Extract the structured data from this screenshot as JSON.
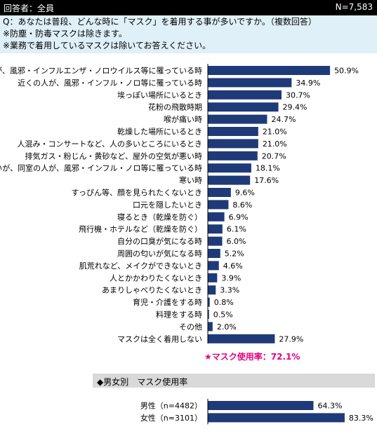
{
  "header": {
    "respondents": "回答者：全員",
    "n": "N=7,583"
  },
  "question": {
    "line1": "Q：あなたは普段、どんな時に「マスク」を着用する事が多いですか。（複数回答）",
    "line2": "※防塵・防毒マスクは除きます。",
    "line3": "※業務で着用しているマスクは除いてお答えください。"
  },
  "colors": {
    "bar": "#1f3a78",
    "note": "#e6007e",
    "question_bg": "#dff0f9",
    "section_bg": "#d9d9d9"
  },
  "chart_data": [
    {
      "type": "bar",
      "orientation": "horizontal",
      "unit": "%",
      "categories": [
        "自分が、風邪・インフルエンザ・ノロウイルス等に罹っている時",
        "近くの人が、風邪・インフル・ノロ等に罹っている時",
        "埃っぽい場所にいるとき",
        "花粉の飛散時期",
        "喉が痛い時",
        "乾燥した場所にいるとき",
        "人混み・コンサートなど、人の多いところにいるとき",
        "排気ガス・粉じん・黄砂など、屋外の空気が悪い時",
        "近くはないが、同室の人が、風邪・インフル・ノロ等に罹っている時",
        "寒い時",
        "すっぴん等、顔を見られたくないとき",
        "口元を隠したいとき",
        "寝るとき（乾燥を防ぐ）",
        "飛行機・ホテルなど（乾燥を防ぐ）",
        "自分の口臭が気になる時",
        "周囲の匂いが気になる時",
        "肌荒れなど、メイクができないとき",
        "人とかかわりたくないとき",
        "あまりしゃべりたくないとき",
        "育児・介護をする時",
        "料理をする時",
        "その他",
        "マスクは全く着用しない"
      ],
      "values": [
        50.9,
        34.9,
        30.7,
        29.4,
        24.7,
        21.0,
        21.0,
        20.7,
        18.1,
        17.6,
        9.6,
        8.6,
        6.9,
        6.1,
        6.0,
        5.2,
        4.6,
        3.9,
        3.3,
        0.8,
        0.5,
        2.0,
        27.9
      ],
      "value_labels": [
        "50.9%",
        "34.9%",
        "30.7%",
        "29.4%",
        "24.7%",
        "21.0%",
        "21.0%",
        "20.7%",
        "18.1%",
        "17.6%",
        "9.6%",
        "8.6%",
        "6.9%",
        "6.1%",
        "6.0%",
        "5.2%",
        "4.6%",
        "3.9%",
        "3.3%",
        "0.8%",
        "0.5%",
        "2.0%",
        "27.9%"
      ],
      "grid": false,
      "legend": "none"
    },
    {
      "type": "bar",
      "orientation": "horizontal",
      "unit": "%",
      "title": "◆男女別　マスク使用率",
      "categories": [
        "男性（n=4482）",
        "女性（n=3101）"
      ],
      "values": [
        64.3,
        83.3
      ],
      "value_labels": [
        "64.3%",
        "83.3%"
      ],
      "grid": false,
      "legend": "none"
    }
  ],
  "usage_note": "★マスク使用率：72.1%",
  "section_title": "◆男女別　マスク使用率"
}
